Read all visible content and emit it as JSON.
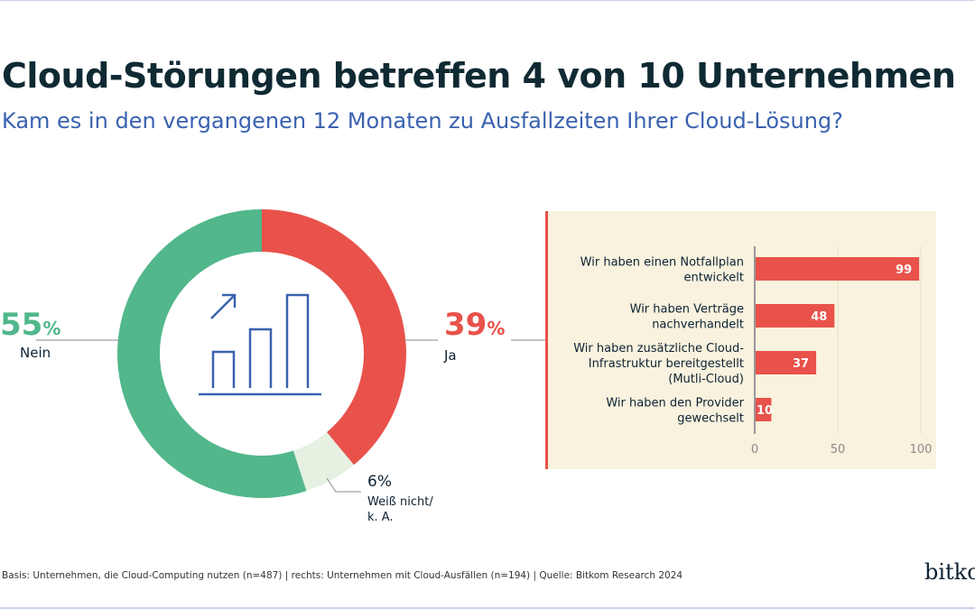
{
  "title": "Cloud-Störungen betreffen 4 von 10 Unternehmen",
  "subtitle": "Kam es in den vergangenen 12 Monaten zu Ausfallzeiten Ihrer Cloud-Lösung?",
  "footer": "Basis: Unternehmen, die Cloud-Computing nutzen (n=487) | rechts: Unternehmen mit Cloud-Ausfällen (n=194) | Quelle: Bitkom Research 2024",
  "logo": "bitkom",
  "chart_data": [
    {
      "type": "pie",
      "variant": "donut",
      "unit": "%",
      "slices": [
        {
          "label": "Ja",
          "value": 39,
          "value_text": "39",
          "color": "#e8524a"
        },
        {
          "label": "Weiß nicht/ k. A.",
          "label_lines": [
            "Weiß nicht/",
            "k. A."
          ],
          "value": 6,
          "value_text": "6%",
          "color": "#e6f1e2"
        },
        {
          "label": "Nein",
          "value": 55,
          "value_text": "55",
          "color": "#52b78b"
        }
      ],
      "center_icon": "bar-chart-growth-icon"
    },
    {
      "type": "bar",
      "orientation": "horizontal",
      "color": "#e8524a",
      "background": "#f8f2de",
      "categories": [
        [
          "Wir haben einen Notfallplan",
          "entwickelt"
        ],
        [
          "Wir haben Verträge",
          "nachverhandelt"
        ],
        [
          "Wir haben zusätzliche Cloud-",
          "Infrastruktur bereitgestellt",
          "(Mutli-Cloud)"
        ],
        [
          "Wir haben den Provider",
          "gewechselt"
        ]
      ],
      "values": [
        99,
        48,
        37,
        10
      ],
      "xlim": [
        0,
        100
      ],
      "xticks": [
        0,
        50,
        100
      ],
      "grid": true
    }
  ]
}
